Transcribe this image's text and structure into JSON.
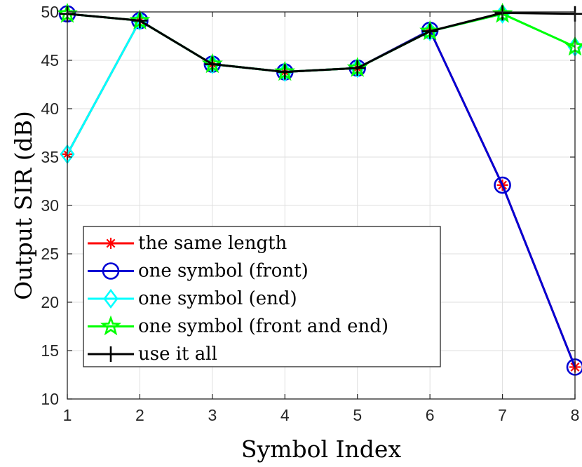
{
  "chart_data": {
    "type": "line",
    "xlabel": "Symbol Index",
    "ylabel": "Output SIR (dB)",
    "xlim": [
      1,
      8
    ],
    "ylim": [
      10,
      50
    ],
    "xticks": [
      1,
      2,
      3,
      4,
      5,
      6,
      7,
      8
    ],
    "yticks": [
      10,
      15,
      20,
      25,
      30,
      35,
      40,
      45,
      50
    ],
    "grid": true,
    "legend_position": "bottom-left",
    "series": [
      {
        "name": "the same length",
        "color": "#ff0000",
        "marker": "asterisk",
        "x": [
          1,
          2,
          3,
          4,
          5,
          6,
          7,
          8
        ],
        "values": [
          35.3,
          49.1,
          44.6,
          43.8,
          44.2,
          48.1,
          32.1,
          13.3
        ]
      },
      {
        "name": "one symbol (front)",
        "color": "#0000d4",
        "marker": "circle",
        "x": [
          1,
          2,
          3,
          4,
          5,
          6,
          7,
          8
        ],
        "values": [
          49.8,
          49.1,
          44.6,
          43.8,
          44.2,
          48.1,
          32.1,
          13.3
        ]
      },
      {
        "name": "one symbol (end)",
        "color": "#00ffff",
        "marker": "diamond",
        "x": [
          1,
          2,
          3,
          4,
          5,
          6,
          7,
          8
        ],
        "values": [
          35.3,
          49.1,
          44.6,
          43.8,
          44.2,
          48.0,
          49.8,
          46.4
        ]
      },
      {
        "name": "one symbol (front and end)",
        "color": "#00ff00",
        "marker": "star",
        "x": [
          1,
          2,
          3,
          4,
          5,
          6,
          7,
          8
        ],
        "values": [
          49.8,
          49.1,
          44.6,
          43.8,
          44.2,
          48.0,
          49.8,
          46.4
        ]
      },
      {
        "name": "use it all",
        "color": "#000000",
        "marker": "plus",
        "x": [
          1,
          2,
          3,
          4,
          5,
          6,
          7,
          8
        ],
        "values": [
          49.8,
          49.1,
          44.6,
          43.8,
          44.2,
          48.0,
          49.9,
          49.8
        ]
      }
    ]
  }
}
